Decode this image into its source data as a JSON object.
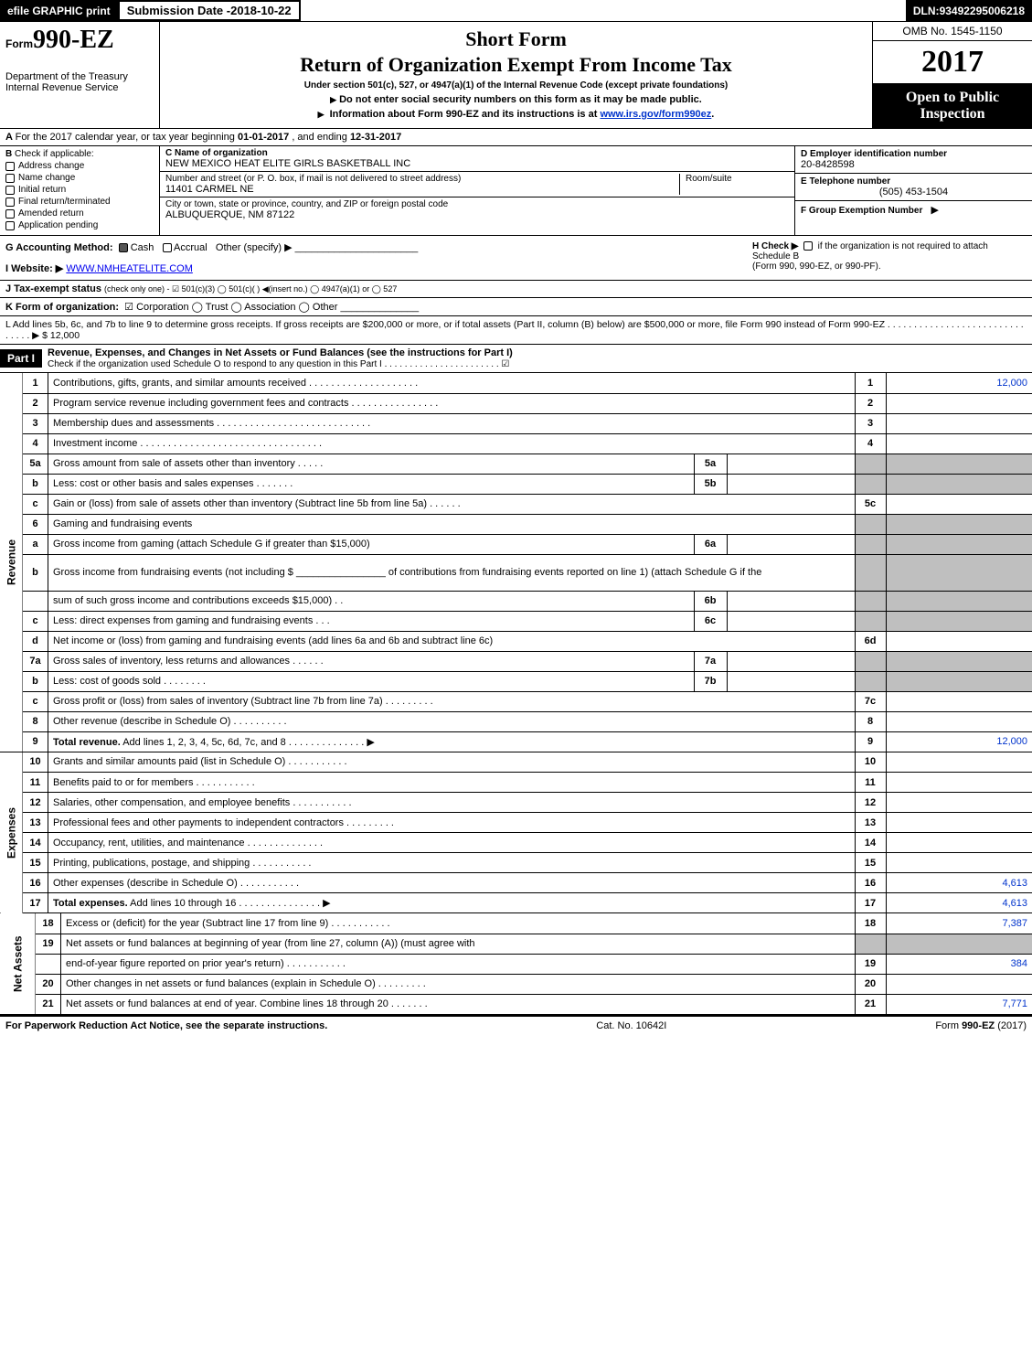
{
  "topbar": {
    "efile": "efile GRAPHIC print",
    "subdate_label": "Submission Date - ",
    "subdate_value": "2018-10-22",
    "dln_label": "DLN: ",
    "dln_value": "93492295006218"
  },
  "header": {
    "form_prefix": "Form",
    "form_number": "990-EZ",
    "dept1": "Department of the Treasury",
    "dept2": "Internal Revenue Service",
    "short_form": "Short Form",
    "title": "Return of Organization Exempt From Income Tax",
    "undersection": "Under section 501(c), 527, or 4947(a)(1) of the Internal Revenue Code (except private foundations)",
    "donot": "Do not enter social security numbers on this form as it may be made public.",
    "infoabout_pre": "Information about Form 990-EZ and its instructions is at ",
    "infoabout_link": "www.irs.gov/form990ez",
    "omb": "OMB No. 1545-1150",
    "year": "2017",
    "open1": "Open to Public",
    "open2": "Inspection"
  },
  "sectionA": {
    "text_pre": "For the 2017 calendar year, or tax year beginning ",
    "begin": "01-01-2017",
    "mid": ", and ending ",
    "end": "12-31-2017"
  },
  "sectionB": {
    "label": "Check if applicable:",
    "items": [
      "Address change",
      "Name change",
      "Initial return",
      "Final return/terminated",
      "Amended return",
      "Application pending"
    ]
  },
  "sectionC": {
    "label": "C Name of organization",
    "name": "NEW MEXICO HEAT ELITE GIRLS BASKETBALL INC",
    "street_label": "Number and street (or P. O. box, if mail is not delivered to street address)",
    "room_label": "Room/suite",
    "street": "11401 CARMEL NE",
    "city_label": "City or town, state or province, country, and ZIP or foreign postal code",
    "city": "ALBUQUERQUE, NM  87122"
  },
  "sectionD": {
    "ein_label": "D Employer identification number",
    "ein": "20-8428598",
    "tel_label": "E Telephone number",
    "tel": "(505) 453-1504",
    "group_label": "F Group Exemption Number",
    "group_arrow": "▶"
  },
  "rowG": {
    "label": "G Accounting Method:",
    "cash": "Cash",
    "accrual": "Accrual",
    "other": "Other (specify) ▶"
  },
  "rowH": {
    "label": "H  Check ▶",
    "text1": "if the organization is not required to attach Schedule B",
    "text2": "(Form 990, 990-EZ, or 990-PF)."
  },
  "rowI": {
    "label": "I Website: ▶",
    "value": "WWW.NMHEATELITE.COM"
  },
  "rowJ": {
    "label": "J Tax-exempt status",
    "rest": "(check only one) -  ☑ 501(c)(3)   ◯ 501(c)(  ) ◀(insert no.)  ◯ 4947(a)(1) or  ◯ 527"
  },
  "rowK": {
    "label": "K Form of organization:",
    "rest": "☑ Corporation   ◯ Trust   ◯ Association   ◯ Other"
  },
  "rowL": {
    "text": "L Add lines 5b, 6c, and 7b to line 9 to determine gross receipts. If gross receipts are $200,000 or more, or if total assets (Part II, column (B) below) are $500,000 or more, file Form 990 instead of Form 990-EZ  . . . . . . . . . . . . . . . . . . . . . . . . . . . . . . . ▶ $ 12,000"
  },
  "part1": {
    "header": "Part I",
    "title": "Revenue, Expenses, and Changes in Net Assets or Fund Balances (see the instructions for Part I)",
    "sub": "Check if the organization used Schedule O to respond to any question in this Part I . . . . . . . . . . . . . . . . . . . . . . . ☑"
  },
  "sections": {
    "revenue": "Revenue",
    "expenses": "Expenses",
    "netassets": "Net Assets"
  },
  "lines": [
    {
      "no": "1",
      "desc": "Contributions, gifts, grants, and similar amounts received . . . . . . . . . . . . . . . . . . . .",
      "box": "1",
      "amount": "12,000"
    },
    {
      "no": "2",
      "desc": "Program service revenue including government fees and contracts . . . . . . . . . . . . . . . .",
      "box": "2",
      "amount": ""
    },
    {
      "no": "3",
      "desc": "Membership dues and assessments . . . . . . . . . . . . . . . . . . . . . . . . . . . .",
      "box": "3",
      "amount": ""
    },
    {
      "no": "4",
      "desc": "Investment income . . . . . . . . . . . . . . . . . . . . . . . . . . . . . . . . .",
      "box": "4",
      "amount": ""
    },
    {
      "no": "5a",
      "desc": "Gross amount from sale of assets other than inventory . . . . .",
      "inner": "5a",
      "shaded": true
    },
    {
      "no": "b",
      "desc": "Less: cost or other basis and sales expenses . . . . . . .",
      "inner": "5b",
      "shaded": true
    },
    {
      "no": "c",
      "desc": "Gain or (loss) from sale of assets other than inventory (Subtract line 5b from line 5a)       .   .   .   .   .   .",
      "box": "5c",
      "amount": ""
    },
    {
      "no": "6",
      "desc": "Gaming and fundraising events",
      "shaded": true,
      "noright": true
    },
    {
      "no": "a",
      "desc": "Gross income from gaming (attach Schedule G if greater than $15,000)",
      "inner": "6a",
      "shaded": true
    },
    {
      "no": "b",
      "desc": "Gross income from fundraising events (not including $ ________________ of contributions from fundraising events reported on line 1) (attach Schedule G if the",
      "shaded": true,
      "noright": true,
      "tall": true
    },
    {
      "no": "",
      "desc": "sum of such gross income and contributions exceeds $15,000)       .    .",
      "inner": "6b",
      "shaded": true
    },
    {
      "no": "c",
      "desc": "Less: direct expenses from gaming and fundraising events       .    .    .",
      "inner": "6c",
      "shaded": true
    },
    {
      "no": "d",
      "desc": "Net income or (loss) from gaming and fundraising events (add lines 6a and 6b and subtract line 6c)",
      "box": "6d",
      "amount": ""
    },
    {
      "no": "7a",
      "desc": "Gross sales of inventory, less returns and allowances         .    .    .    .    .    .",
      "inner": "7a",
      "shaded": true
    },
    {
      "no": "b",
      "desc": "Less: cost of goods sold                          .    .    .    .    .    .    .    .",
      "inner": "7b",
      "shaded": true
    },
    {
      "no": "c",
      "desc": "Gross profit or (loss) from sales of inventory (Subtract line 7b from line 7a)        .   .   .   .   .   .   .   .   .",
      "box": "7c",
      "amount": ""
    },
    {
      "no": "8",
      "desc": "Other revenue (describe in Schedule O)                    .   .   .   .   .   .   .   .   .   .",
      "box": "8",
      "amount": ""
    },
    {
      "no": "9",
      "desc": "Total revenue. Add lines 1, 2, 3, 4, 5c, 6d, 7c, and 8        .   .   .   .   .   .   .   .   .   .   .   .   .   .   ▶",
      "box": "9",
      "amount": "12,000",
      "bold": true
    }
  ],
  "expense_lines": [
    {
      "no": "10",
      "desc": "Grants and similar amounts paid (list in Schedule O)           .   .   .   .   .   .   .   .   .   .   .",
      "box": "10",
      "amount": ""
    },
    {
      "no": "11",
      "desc": "Benefits paid to or for members                       .   .   .   .   .   .   .   .   .   .   .",
      "box": "11",
      "amount": ""
    },
    {
      "no": "12",
      "desc": "Salaries, other compensation, and employee benefits        .   .   .   .   .   .   .   .   .   .   .",
      "box": "12",
      "amount": ""
    },
    {
      "no": "13",
      "desc": "Professional fees and other payments to independent contractors     .   .   .   .   .   .   .   .   .",
      "box": "13",
      "amount": ""
    },
    {
      "no": "14",
      "desc": "Occupancy, rent, utilities, and maintenance        .   .   .   .   .   .   .   .   .   .   .   .   .   .",
      "box": "14",
      "amount": ""
    },
    {
      "no": "15",
      "desc": "Printing, publications, postage, and shipping              .   .   .   .   .   .   .   .   .   .   .",
      "box": "15",
      "amount": ""
    },
    {
      "no": "16",
      "desc": "Other expenses (describe in Schedule O)                  .   .   .   .   .   .   .   .   .   .   .",
      "box": "16",
      "amount": "4,613"
    },
    {
      "no": "17",
      "desc": "Total expenses. Add lines 10 through 16        .   .   .   .   .   .   .   .   .   .   .   .   .   .   .   ▶",
      "box": "17",
      "amount": "4,613",
      "bold": true
    }
  ],
  "netasset_lines": [
    {
      "no": "18",
      "desc": "Excess or (deficit) for the year (Subtract line 17 from line 9)       .   .   .   .   .   .   .   .   .   .   .",
      "box": "18",
      "amount": "7,387"
    },
    {
      "no": "19",
      "desc": "Net assets or fund balances at beginning of year (from line 27, column (A)) (must agree with",
      "shaded": true,
      "noright": true
    },
    {
      "no": "",
      "desc": "end-of-year figure reported on prior year's return)           .   .   .   .   .   .   .   .   .   .   .",
      "box": "19",
      "amount": "384"
    },
    {
      "no": "20",
      "desc": "Other changes in net assets or fund balances (explain in Schedule O)    .   .   .   .   .   .   .   .   .",
      "box": "20",
      "amount": ""
    },
    {
      "no": "21",
      "desc": "Net assets or fund balances at end of year. Combine lines 18 through 20       .   .   .   .   .   .   .",
      "box": "21",
      "amount": "7,771"
    }
  ],
  "footer": {
    "left": "For Paperwork Reduction Act Notice, see the separate instructions.",
    "center": "Cat. No. 10642I",
    "right_pre": "Form ",
    "right_bold": "990-EZ",
    "right_post": " (2017)"
  },
  "colors": {
    "link": "#0033cc",
    "shaded": "#bfbfbf",
    "black": "#000000"
  }
}
